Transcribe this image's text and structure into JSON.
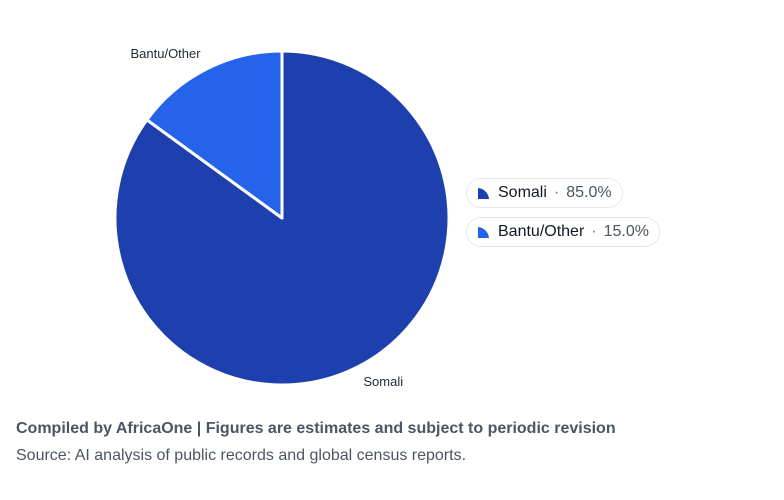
{
  "chart_data": {
    "type": "pie",
    "slices": [
      {
        "name": "Somali",
        "value": 85.0,
        "value_label": "85.0%",
        "color": "#1e40af"
      },
      {
        "name": "Bantu/Other",
        "value": 15.0,
        "value_label": "15.0%",
        "color": "#2563eb"
      }
    ],
    "legend_placement": "right",
    "start_angle": "12 o'clock",
    "direction": "clockwise",
    "slice_border_color": "#ffffff"
  },
  "legend_separator": "·",
  "footer": {
    "credit": "Compiled by AfricaOne | Figures are estimates and subject to periodic revision",
    "source": "Source: AI analysis of public records and global census reports."
  }
}
